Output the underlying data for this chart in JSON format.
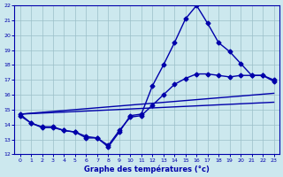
{
  "xlabel": "Graphe des températures (°c)",
  "bg_color": "#cce8ee",
  "line_color": "#0000aa",
  "grid_color": "#9bbfc8",
  "xlim": [
    -0.5,
    23.5
  ],
  "ylim": [
    12,
    22
  ],
  "xticks": [
    0,
    1,
    2,
    3,
    4,
    5,
    6,
    7,
    8,
    9,
    10,
    11,
    12,
    13,
    14,
    15,
    16,
    17,
    18,
    19,
    20,
    21,
    22,
    23
  ],
  "yticks": [
    12,
    13,
    14,
    15,
    16,
    17,
    18,
    19,
    20,
    21,
    22
  ],
  "line1_x": [
    0,
    1,
    2,
    3,
    4,
    5,
    6,
    7,
    8,
    9,
    10,
    11,
    12,
    13,
    14,
    15,
    16,
    17,
    18,
    19,
    20,
    21,
    22,
    23
  ],
  "line1_y": [
    14.7,
    14.1,
    13.8,
    13.8,
    13.6,
    13.5,
    13.1,
    13.1,
    12.5,
    13.5,
    14.6,
    14.7,
    16.6,
    18.0,
    19.5,
    21.1,
    22.0,
    20.8,
    19.5,
    18.9,
    18.1,
    17.3,
    17.3,
    16.9
  ],
  "line2_x": [
    0,
    1,
    2,
    3,
    4,
    5,
    6,
    7,
    8,
    9,
    10,
    11,
    12,
    13,
    14,
    15,
    16,
    17,
    18,
    19,
    20,
    21,
    22,
    23
  ],
  "line2_y": [
    14.6,
    14.1,
    13.85,
    13.85,
    13.6,
    13.5,
    13.2,
    13.1,
    12.6,
    13.6,
    14.5,
    14.6,
    15.3,
    16.0,
    16.7,
    17.1,
    17.4,
    17.4,
    17.3,
    17.2,
    17.3,
    17.3,
    17.3,
    17.0
  ],
  "line3_x": [
    0,
    23
  ],
  "line3_y": [
    14.7,
    16.1
  ],
  "line4_x": [
    0,
    23
  ],
  "line4_y": [
    14.7,
    15.5
  ],
  "marker_size": 2.5,
  "line_width": 1.0
}
